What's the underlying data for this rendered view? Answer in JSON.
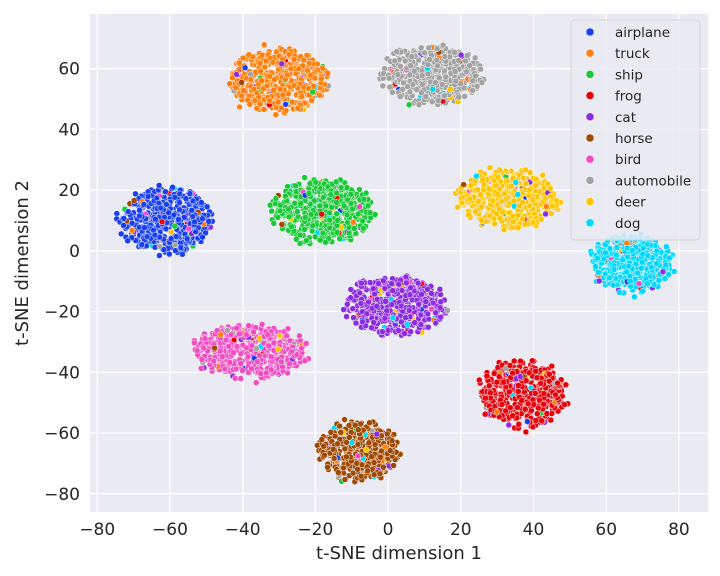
{
  "chart_data": {
    "type": "scatter",
    "title": "",
    "xlabel": "t-SNE dimension 1",
    "ylabel": "t-SNE dimension 2",
    "xlim": [
      -82,
      88
    ],
    "ylim": [
      -86,
      78
    ],
    "xticks": [
      -80,
      -60,
      -40,
      -20,
      0,
      20,
      40,
      60,
      80
    ],
    "yticks": [
      -80,
      -60,
      -40,
      -20,
      0,
      20,
      40,
      60
    ],
    "xtick_labels": [
      "−80",
      "−60",
      "−40",
      "−20",
      "0",
      "20",
      "40",
      "60",
      "80"
    ],
    "ytick_labels": [
      "−80",
      "−60",
      "−40",
      "−20",
      "0",
      "20",
      "40",
      "60"
    ],
    "grid": true,
    "legend_position": "top-right",
    "series": [
      {
        "name": "airplane",
        "color": "#1a3ff0",
        "center": [
          -61,
          10
        ],
        "spread": [
          8,
          6.5
        ],
        "count": 520
      },
      {
        "name": "truck",
        "color": "#ff7f0e",
        "center": [
          -30,
          56
        ],
        "spread": [
          8.5,
          6.5
        ],
        "count": 520
      },
      {
        "name": "ship",
        "color": "#1ac938",
        "center": [
          -18,
          13
        ],
        "spread": [
          9,
          6.5
        ],
        "count": 520
      },
      {
        "name": "frog",
        "color": "#e8000b",
        "center": [
          37,
          -47
        ],
        "spread": [
          7.5,
          7
        ],
        "count": 520
      },
      {
        "name": "cat",
        "color": "#8b2be2",
        "center": [
          2,
          -18
        ],
        "spread": [
          9,
          6
        ],
        "count": 520
      },
      {
        "name": "horse",
        "color": "#9f4800",
        "center": [
          -8,
          -66
        ],
        "spread": [
          7,
          6
        ],
        "count": 520
      },
      {
        "name": "bird",
        "color": "#f14cc1",
        "center": [
          -38,
          -33
        ],
        "spread": [
          10,
          5.5
        ],
        "count": 520
      },
      {
        "name": "automobile",
        "color": "#a3a3a3",
        "center": [
          12,
          58
        ],
        "spread": [
          9,
          6
        ],
        "count": 520
      },
      {
        "name": "deer",
        "color": "#ffc400",
        "center": [
          33,
          17
        ],
        "spread": [
          9,
          6
        ],
        "count": 520
      },
      {
        "name": "dog",
        "color": "#00d7ff",
        "center": [
          67,
          -4
        ],
        "spread": [
          7,
          6
        ],
        "count": 520
      }
    ]
  }
}
